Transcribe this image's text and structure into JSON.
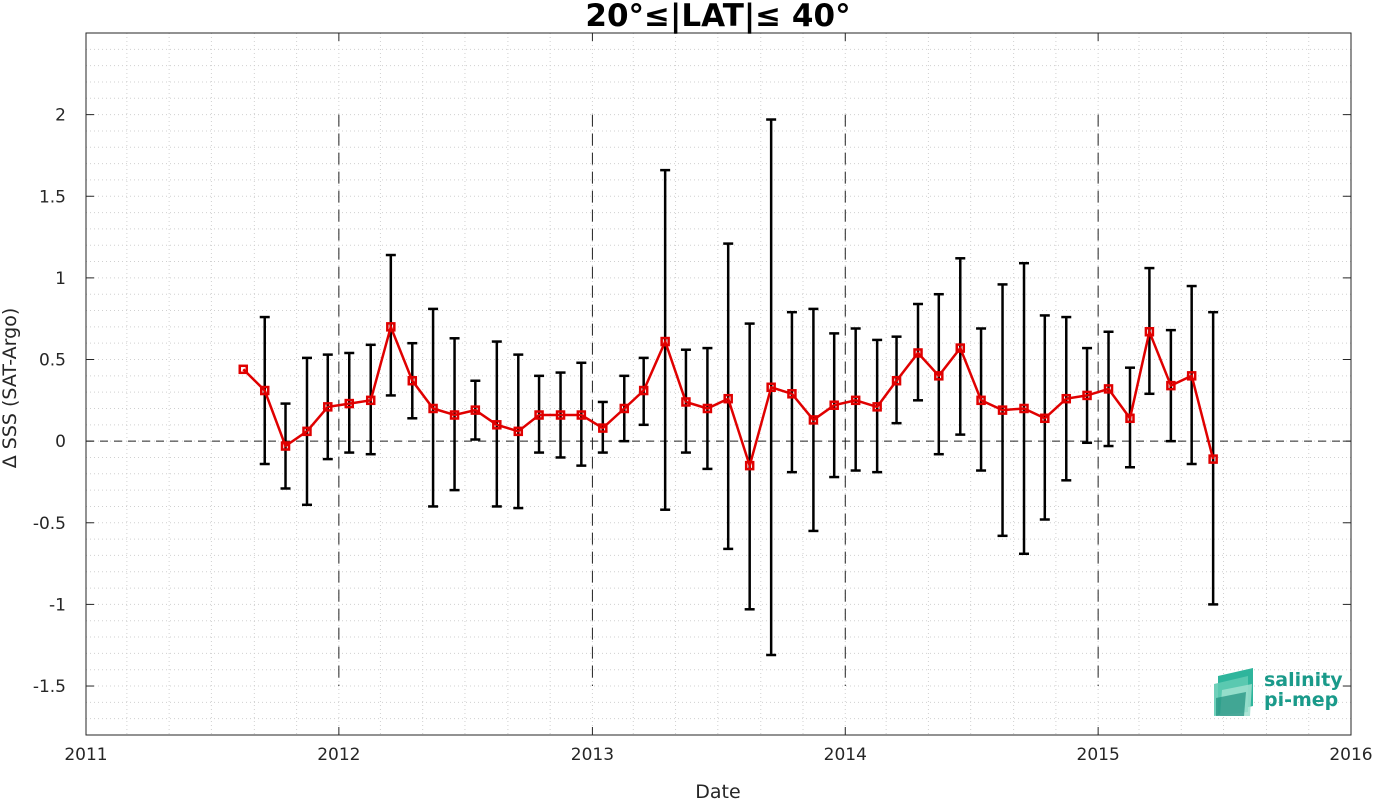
{
  "chart_data": {
    "type": "line",
    "title": "20°≤|LAT|≤ 40°",
    "xlabel": "Date",
    "ylabel": "Δ SSS (SAT-Argo)",
    "xlim": [
      "2011-01-01",
      "2016-01-01"
    ],
    "ylim": [
      -1.8,
      2.5
    ],
    "x_tick_labels": [
      "2011",
      "2012",
      "2013",
      "2014",
      "2015",
      "2016"
    ],
    "y_ticks": [
      -1.5,
      -1,
      -0.5,
      0,
      0.5,
      1,
      1.5,
      2
    ],
    "y_tick_labels": [
      "-1.5",
      "-1",
      "-0.5",
      "0",
      "0.5",
      "1",
      "1.5",
      "2"
    ],
    "grid": "minor dotted",
    "year_divider_lines": [
      "2012",
      "2013",
      "2014",
      "2015"
    ],
    "zero_line": true,
    "series": [
      {
        "color": "#e00000",
        "errorbar_color": "#000000",
        "points": [
          {
            "x": "2011-08-16",
            "y": 0.44
          },
          {
            "x": "2011-09-16",
            "y": 0.31,
            "lo": -0.14,
            "hi": 0.76
          },
          {
            "x": "2011-10-16",
            "y": -0.03,
            "lo": -0.29,
            "hi": 0.23
          },
          {
            "x": "2011-11-16",
            "y": 0.06,
            "lo": -0.39,
            "hi": 0.51
          },
          {
            "x": "2011-12-16",
            "y": 0.21,
            "lo": -0.11,
            "hi": 0.53
          },
          {
            "x": "2012-01-16",
            "y": 0.23,
            "lo": -0.07,
            "hi": 0.54
          },
          {
            "x": "2012-02-16",
            "y": 0.25,
            "lo": -0.08,
            "hi": 0.59
          },
          {
            "x": "2012-03-16",
            "y": 0.7,
            "lo": 0.28,
            "hi": 1.14
          },
          {
            "x": "2012-04-16",
            "y": 0.37,
            "lo": 0.14,
            "hi": 0.6
          },
          {
            "x": "2012-05-16",
            "y": 0.2,
            "lo": -0.4,
            "hi": 0.81
          },
          {
            "x": "2012-06-16",
            "y": 0.16,
            "lo": -0.3,
            "hi": 0.63
          },
          {
            "x": "2012-07-16",
            "y": 0.19,
            "lo": 0.01,
            "hi": 0.37
          },
          {
            "x": "2012-08-16",
            "y": 0.1,
            "lo": -0.4,
            "hi": 0.61
          },
          {
            "x": "2012-09-16",
            "y": 0.06,
            "lo": -0.41,
            "hi": 0.53
          },
          {
            "x": "2012-10-16",
            "y": 0.16,
            "lo": -0.07,
            "hi": 0.4
          },
          {
            "x": "2012-11-16",
            "y": 0.16,
            "lo": -0.1,
            "hi": 0.42
          },
          {
            "x": "2012-12-16",
            "y": 0.16,
            "lo": -0.15,
            "hi": 0.48
          },
          {
            "x": "2013-01-16",
            "y": 0.08,
            "lo": -0.07,
            "hi": 0.24
          },
          {
            "x": "2013-02-16",
            "y": 0.2,
            "lo": 0.0,
            "hi": 0.4
          },
          {
            "x": "2013-03-16",
            "y": 0.31,
            "lo": 0.1,
            "hi": 0.51
          },
          {
            "x": "2013-04-16",
            "y": 0.61,
            "lo": -0.42,
            "hi": 1.66
          },
          {
            "x": "2013-05-16",
            "y": 0.24,
            "lo": -0.07,
            "hi": 0.56
          },
          {
            "x": "2013-06-16",
            "y": 0.2,
            "lo": -0.17,
            "hi": 0.57
          },
          {
            "x": "2013-07-16",
            "y": 0.26,
            "lo": -0.66,
            "hi": 1.21
          },
          {
            "x": "2013-08-16",
            "y": -0.15,
            "lo": -1.03,
            "hi": 0.72
          },
          {
            "x": "2013-09-16",
            "y": 0.33,
            "lo": -1.31,
            "hi": 1.97
          },
          {
            "x": "2013-10-16",
            "y": 0.29,
            "lo": -0.19,
            "hi": 0.79
          },
          {
            "x": "2013-11-16",
            "y": 0.13,
            "lo": -0.55,
            "hi": 0.81
          },
          {
            "x": "2013-12-16",
            "y": 0.22,
            "lo": -0.22,
            "hi": 0.66
          },
          {
            "x": "2014-01-16",
            "y": 0.25,
            "lo": -0.18,
            "hi": 0.69
          },
          {
            "x": "2014-02-16",
            "y": 0.21,
            "lo": -0.19,
            "hi": 0.62
          },
          {
            "x": "2014-03-16",
            "y": 0.37,
            "lo": 0.11,
            "hi": 0.64
          },
          {
            "x": "2014-04-16",
            "y": 0.54,
            "lo": 0.25,
            "hi": 0.84
          },
          {
            "x": "2014-05-16",
            "y": 0.4,
            "lo": -0.08,
            "hi": 0.9
          },
          {
            "x": "2014-06-16",
            "y": 0.57,
            "lo": 0.04,
            "hi": 1.12
          },
          {
            "x": "2014-07-16",
            "y": 0.25,
            "lo": -0.18,
            "hi": 0.69
          },
          {
            "x": "2014-08-16",
            "y": 0.19,
            "lo": -0.58,
            "hi": 0.96
          },
          {
            "x": "2014-09-16",
            "y": 0.2,
            "lo": -0.69,
            "hi": 1.09
          },
          {
            "x": "2014-10-16",
            "y": 0.14,
            "lo": -0.48,
            "hi": 0.77
          },
          {
            "x": "2014-11-16",
            "y": 0.26,
            "lo": -0.24,
            "hi": 0.76
          },
          {
            "x": "2014-12-16",
            "y": 0.28,
            "lo": -0.01,
            "hi": 0.57
          },
          {
            "x": "2015-01-16",
            "y": 0.32,
            "lo": -0.03,
            "hi": 0.67
          },
          {
            "x": "2015-02-16",
            "y": 0.14,
            "lo": -0.16,
            "hi": 0.45
          },
          {
            "x": "2015-03-16",
            "y": 0.67,
            "lo": 0.29,
            "hi": 1.06
          },
          {
            "x": "2015-04-16",
            "y": 0.34,
            "lo": 0.0,
            "hi": 0.68
          },
          {
            "x": "2015-05-16",
            "y": 0.4,
            "lo": -0.14,
            "hi": 0.95
          },
          {
            "x": "2015-06-16",
            "y": -0.11,
            "lo": -1.0,
            "hi": 0.79
          }
        ]
      }
    ]
  },
  "logo": {
    "line1": "salinity",
    "line2": "pi-mep",
    "color": "#1a9a8a"
  }
}
